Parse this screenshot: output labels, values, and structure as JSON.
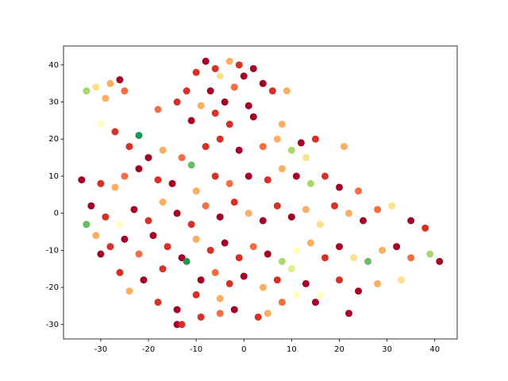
{
  "chart_data": {
    "type": "scatter",
    "xlim": [
      -37.8,
      44.7
    ],
    "ylim": [
      -33.9,
      45.1
    ],
    "xticks": [
      -30,
      -20,
      -10,
      0,
      10,
      20,
      30,
      40
    ],
    "yticks": [
      -30,
      -20,
      -10,
      0,
      10,
      20,
      30,
      40
    ],
    "x": [
      -8,
      -6,
      -3,
      -1,
      2,
      -5,
      -10,
      0,
      4,
      -2,
      -7,
      -12,
      6,
      9,
      -4,
      -9,
      1,
      -14,
      -18,
      -6,
      2,
      -11,
      -3,
      8,
      -33,
      -31,
      -28,
      -25,
      -29,
      -26,
      -30,
      -27,
      -24,
      -22,
      -17,
      -20,
      -13,
      -8,
      -5,
      -1,
      4,
      7,
      12,
      15,
      10,
      13,
      21,
      -34,
      -30,
      -27,
      -25,
      -22,
      -18,
      -11,
      -15,
      -10,
      -6,
      -3,
      1,
      5,
      8,
      11,
      14,
      17,
      20,
      24,
      -32,
      -29,
      -26,
      -23,
      -20,
      -17,
      -14,
      -11,
      -8,
      -5,
      -2,
      1,
      4,
      7,
      10,
      13,
      16,
      19,
      22,
      25,
      28,
      31,
      35,
      38,
      -31,
      -28,
      -25,
      -22,
      -19,
      -16,
      -13,
      -10,
      -7,
      -4,
      -1,
      2,
      5,
      8,
      11,
      14,
      17,
      20,
      23,
      26,
      29,
      32,
      35,
      39,
      41,
      -30,
      -26,
      -21,
      -17,
      -12,
      -9,
      -6,
      -3,
      0,
      4,
      7,
      10,
      13,
      16,
      20,
      24,
      28,
      33,
      -18,
      -14,
      -10,
      -5,
      -2,
      3,
      8,
      11,
      15,
      22,
      -14,
      -13,
      -9,
      5,
      -5,
      -33,
      -24
    ],
    "y": [
      41,
      39,
      41,
      40,
      39,
      37,
      38,
      37,
      35,
      34,
      33,
      33,
      33,
      33,
      30,
      29,
      29,
      30,
      28,
      27,
      26,
      25,
      24,
      24,
      33,
      34,
      35,
      33,
      31,
      36,
      24,
      22,
      18,
      21,
      17,
      15,
      15,
      18,
      20,
      17,
      18,
      20,
      19,
      20,
      17,
      15,
      18,
      9,
      8,
      7,
      10,
      12,
      9,
      13,
      8,
      6,
      10,
      8,
      10,
      9,
      12,
      10,
      8,
      10,
      7,
      6,
      2,
      -1,
      -3,
      1,
      -2,
      3,
      0,
      -3,
      2,
      -1,
      3,
      0,
      -2,
      2,
      -1,
      1,
      -3,
      2,
      0,
      -2,
      1,
      2,
      -2,
      -4,
      -6,
      -9,
      -7,
      -11,
      -6,
      -9,
      -12,
      -7,
      -10,
      -8,
      -12,
      -9,
      -11,
      -13,
      -10,
      -8,
      -12,
      -9,
      -12,
      -13,
      -10,
      -9,
      -12,
      -11,
      -13,
      -11,
      -16,
      -18,
      -15,
      -13,
      -18,
      -16,
      -19,
      -17,
      -20,
      -18,
      -15,
      -19,
      -22,
      -18,
      -21,
      -19,
      -18,
      -24,
      -26,
      -22,
      -23,
      -26,
      -28,
      -24,
      -22,
      -24,
      -27,
      -30,
      -30,
      -28,
      -27,
      -27,
      -3,
      -21
    ],
    "colors": [
      "#a50026",
      "#d73027",
      "#fdae61",
      "#d73027",
      "#a50026",
      "#fee08b",
      "#d73027",
      "#a50026",
      "#a50026",
      "#f46d43",
      "#a50026",
      "#d73027",
      "#d73027",
      "#fdae61",
      "#a50026",
      "#fdae61",
      "#a50026",
      "#d73027",
      "#f46d43",
      "#d73027",
      "#a50026",
      "#a50026",
      "#d73027",
      "#fdae61",
      "#a6d96a",
      "#fee08b",
      "#fdae61",
      "#f46d43",
      "#fdae61",
      "#a50026",
      "#ffffbf",
      "#d73027",
      "#d73027",
      "#1a9850",
      "#fdae61",
      "#a50026",
      "#f46d43",
      "#d73027",
      "#d73027",
      "#a50026",
      "#f46d43",
      "#fdae61",
      "#a50026",
      "#d73027",
      "#a6d96a",
      "#fee08b",
      "#fdae61",
      "#a50026",
      "#d73027",
      "#fdae61",
      "#f46d43",
      "#a50026",
      "#d73027",
      "#66bd63",
      "#a50026",
      "#fdae61",
      "#d73027",
      "#f46d43",
      "#a50026",
      "#d73027",
      "#fdae61",
      "#a50026",
      "#a6d96a",
      "#d73027",
      "#a50026",
      "#f46d43",
      "#a50026",
      "#d73027",
      "#ffffbf",
      "#a50026",
      "#d73027",
      "#fdae61",
      "#a50026",
      "#d73027",
      "#f46d43",
      "#a50026",
      "#d73027",
      "#fdae61",
      "#a50026",
      "#d73027",
      "#a50026",
      "#fdae61",
      "#fee08b",
      "#d73027",
      "#fdae61",
      "#a50026",
      "#f46d43",
      "#fee08b",
      "#a50026",
      "#d73027",
      "#fdae61",
      "#d73027",
      "#a50026",
      "#f46d43",
      "#a50026",
      "#d73027",
      "#a50026",
      "#fdae61",
      "#d73027",
      "#a50026",
      "#d73027",
      "#f46d43",
      "#a50026",
      "#a6d96a",
      "#ffffbf",
      "#fdae61",
      "#d73027",
      "#a50026",
      "#fee08b",
      "#66bd63",
      "#fdae61",
      "#a50026",
      "#f46d43",
      "#a6d96a",
      "#a50026",
      "#a50026",
      "#d73027",
      "#a50026",
      "#d73027",
      "#1a9850",
      "#a50026",
      "#f46d43",
      "#d73027",
      "#a50026",
      "#fdae61",
      "#d73027",
      "#d9ef8b",
      "#a50026",
      "#ffffbf",
      "#d73027",
      "#a50026",
      "#fdae61",
      "#fee08b",
      "#d73027",
      "#a50026",
      "#d73027",
      "#fdae61",
      "#a50026",
      "#d73027",
      "#f46d43",
      "#ffffbf",
      "#a50026",
      "#a50026",
      "#a50026",
      "#d73027",
      "#d73027",
      "#fdae61",
      "#f46d43",
      "#66bd63",
      "#fdae61"
    ]
  }
}
